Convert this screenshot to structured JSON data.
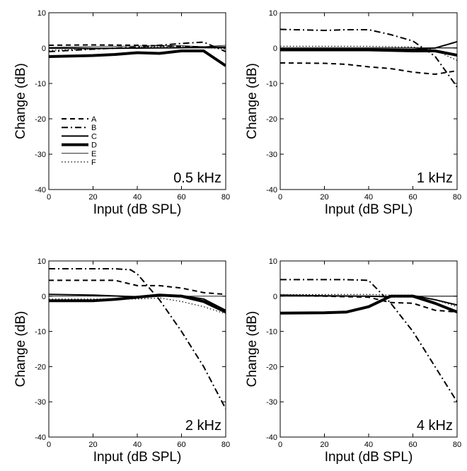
{
  "styles": {
    "A": {
      "width": 2,
      "dash": "7,5"
    },
    "B": {
      "width": 2,
      "dash": "9,4,2,4"
    },
    "C": {
      "width": 2,
      "dash": ""
    },
    "D": {
      "width": 4,
      "dash": ""
    },
    "E": {
      "width": 0.8,
      "dash": ""
    },
    "F": {
      "width": 1.2,
      "dash": "1.5,3"
    }
  },
  "chart_data": [
    {
      "type": "line",
      "title": "0.5 kHz",
      "xlabel": "Input (dB SPL)",
      "ylabel": "Change (dB)",
      "xlim": [
        0,
        80
      ],
      "ylim": [
        -40,
        10
      ],
      "xticks": [
        0,
        20,
        40,
        60,
        80
      ],
      "yticks": [
        10,
        0,
        -10,
        -20,
        -30,
        -40
      ],
      "zero_line": true,
      "legend": [
        "A",
        "B",
        "C",
        "D",
        "E",
        "F"
      ],
      "series": [
        {
          "name": "A",
          "x": [
            0,
            20,
            40,
            60,
            70,
            80
          ],
          "y": [
            0.8,
            0.9,
            0.8,
            0.5,
            0.3,
            0.2
          ]
        },
        {
          "name": "B",
          "x": [
            0,
            20,
            40,
            60,
            70,
            80
          ],
          "y": [
            -1,
            -0.3,
            0.3,
            1.3,
            1.7,
            -1
          ]
        },
        {
          "name": "C",
          "x": [
            0,
            20,
            40,
            60,
            70,
            80
          ],
          "y": [
            0,
            -0.1,
            0,
            0.1,
            0.3,
            0.3
          ]
        },
        {
          "name": "D",
          "x": [
            0,
            20,
            30,
            40,
            50,
            60,
            70,
            80
          ],
          "y": [
            -2.4,
            -2.1,
            -1.8,
            -1.3,
            -1.5,
            -0.8,
            -0.8,
            -5
          ]
        },
        {
          "name": "E",
          "x": [
            0,
            20,
            40,
            60,
            70,
            80
          ],
          "y": [
            0.2,
            0.4,
            0.6,
            0.7,
            0.4,
            0.8
          ]
        },
        {
          "name": "F",
          "x": [
            0,
            20,
            40,
            60,
            70,
            80
          ],
          "y": [
            -0.6,
            -0.3,
            0.2,
            0.5,
            0.2,
            -0.3
          ]
        }
      ]
    },
    {
      "type": "line",
      "title": "1 kHz",
      "xlabel": "Input (dB SPL)",
      "ylabel": "Change (dB)",
      "xlim": [
        0,
        80
      ],
      "ylim": [
        -40,
        10
      ],
      "xticks": [
        0,
        20,
        40,
        60,
        80
      ],
      "yticks": [
        10,
        0,
        -10,
        -20,
        -30,
        -40
      ],
      "zero_line": true,
      "series": [
        {
          "name": "A",
          "x": [
            0,
            20,
            30,
            40,
            50,
            60,
            70,
            80
          ],
          "y": [
            -4.2,
            -4.3,
            -4.6,
            -5.3,
            -5.8,
            -6.8,
            -7.4,
            -6.4
          ]
        },
        {
          "name": "B",
          "x": [
            0,
            20,
            30,
            40,
            50,
            60,
            70,
            80
          ],
          "y": [
            5.3,
            5,
            5.2,
            5.2,
            3.8,
            2,
            -2.3,
            -11
          ]
        },
        {
          "name": "C",
          "x": [
            0,
            20,
            40,
            60,
            70,
            80
          ],
          "y": [
            -0.5,
            -0.3,
            -0.3,
            -0.4,
            0,
            1.8
          ]
        },
        {
          "name": "D",
          "x": [
            0,
            20,
            40,
            60,
            70,
            80
          ],
          "y": [
            -0.5,
            -0.5,
            -0.5,
            -0.8,
            -0.8,
            -2
          ]
        },
        {
          "name": "E",
          "x": [
            0,
            20,
            40,
            60,
            70,
            80
          ],
          "y": [
            0.1,
            0.1,
            0.1,
            0.1,
            0.1,
            0.1
          ]
        },
        {
          "name": "F",
          "x": [
            0,
            20,
            40,
            60,
            70,
            80
          ],
          "y": [
            0.5,
            0.5,
            0.5,
            0.3,
            -0.6,
            -3.5
          ]
        }
      ]
    },
    {
      "type": "line",
      "title": "2 kHz",
      "xlabel": "Input (dB SPL)",
      "ylabel": "Change (dB)",
      "xlim": [
        0,
        80
      ],
      "ylim": [
        -40,
        10
      ],
      "xticks": [
        0,
        20,
        40,
        60,
        80
      ],
      "yticks": [
        10,
        0,
        -10,
        -20,
        -30,
        -40
      ],
      "zero_line": false,
      "series": [
        {
          "name": "A",
          "x": [
            0,
            20,
            30,
            40,
            50,
            60,
            70,
            80
          ],
          "y": [
            4.5,
            4.5,
            4.5,
            3,
            3,
            2.3,
            1,
            0.5
          ]
        },
        {
          "name": "B",
          "x": [
            0,
            20,
            30,
            37,
            40,
            50,
            60,
            70,
            80
          ],
          "y": [
            7.8,
            7.8,
            7.8,
            7.5,
            6.3,
            -1,
            -10,
            -20,
            -32
          ]
        },
        {
          "name": "C",
          "x": [
            0,
            20,
            40,
            50,
            60,
            70,
            80
          ],
          "y": [
            0.5,
            0.3,
            -0.2,
            0,
            0.2,
            -0.8,
            -4
          ]
        },
        {
          "name": "D",
          "x": [
            0,
            20,
            30,
            40,
            50,
            60,
            70,
            80
          ],
          "y": [
            -1.3,
            -1.3,
            -0.9,
            -0.3,
            0.3,
            0,
            -1.5,
            -4.5
          ]
        },
        {
          "name": "E",
          "x": [
            0,
            20,
            40,
            60,
            70,
            80
          ],
          "y": [
            0,
            0,
            0,
            0,
            0,
            0
          ]
        },
        {
          "name": "F",
          "x": [
            0,
            20,
            30,
            40,
            50,
            60,
            70,
            80
          ],
          "y": [
            -0.8,
            -0.8,
            -0.8,
            -0.8,
            -0.5,
            -1.5,
            -3,
            -5
          ]
        }
      ]
    },
    {
      "type": "line",
      "title": "4 kHz",
      "xlabel": "Input (dB SPL)",
      "ylabel": "Change (dB)",
      "xlim": [
        0,
        80
      ],
      "ylim": [
        -40,
        10
      ],
      "xticks": [
        0,
        20,
        40,
        60,
        80
      ],
      "yticks": [
        10,
        0,
        -10,
        -20,
        -30,
        -40
      ],
      "zero_line": true,
      "series": [
        {
          "name": "A",
          "x": [
            0,
            20,
            40,
            50,
            60,
            70,
            80
          ],
          "y": [
            0.2,
            0,
            -0.3,
            -1.8,
            -2,
            -4,
            -4.5
          ]
        },
        {
          "name": "B",
          "x": [
            0,
            20,
            30,
            40,
            50,
            60,
            70,
            80
          ],
          "y": [
            4.7,
            4.7,
            4.7,
            4.5,
            -2,
            -10,
            -20,
            -30
          ]
        },
        {
          "name": "C",
          "x": [
            0,
            20,
            40,
            50,
            60,
            70,
            80
          ],
          "y": [
            0.3,
            0.1,
            0,
            -0.2,
            0.2,
            -1,
            -2.5
          ]
        },
        {
          "name": "D",
          "x": [
            0,
            20,
            30,
            40,
            50,
            60,
            70,
            80
          ],
          "y": [
            -4.8,
            -4.7,
            -4.5,
            -3,
            0,
            0,
            -2,
            -4.5
          ]
        },
        {
          "name": "E",
          "x": [
            0,
            20,
            40,
            60,
            70,
            80
          ],
          "y": [
            0,
            0,
            0,
            0,
            0,
            0
          ]
        },
        {
          "name": "F",
          "x": [
            0,
            20,
            40,
            50,
            60,
            70,
            80
          ],
          "y": [
            0.4,
            0.5,
            0.5,
            0.3,
            0.3,
            -1,
            -3
          ]
        }
      ]
    }
  ]
}
